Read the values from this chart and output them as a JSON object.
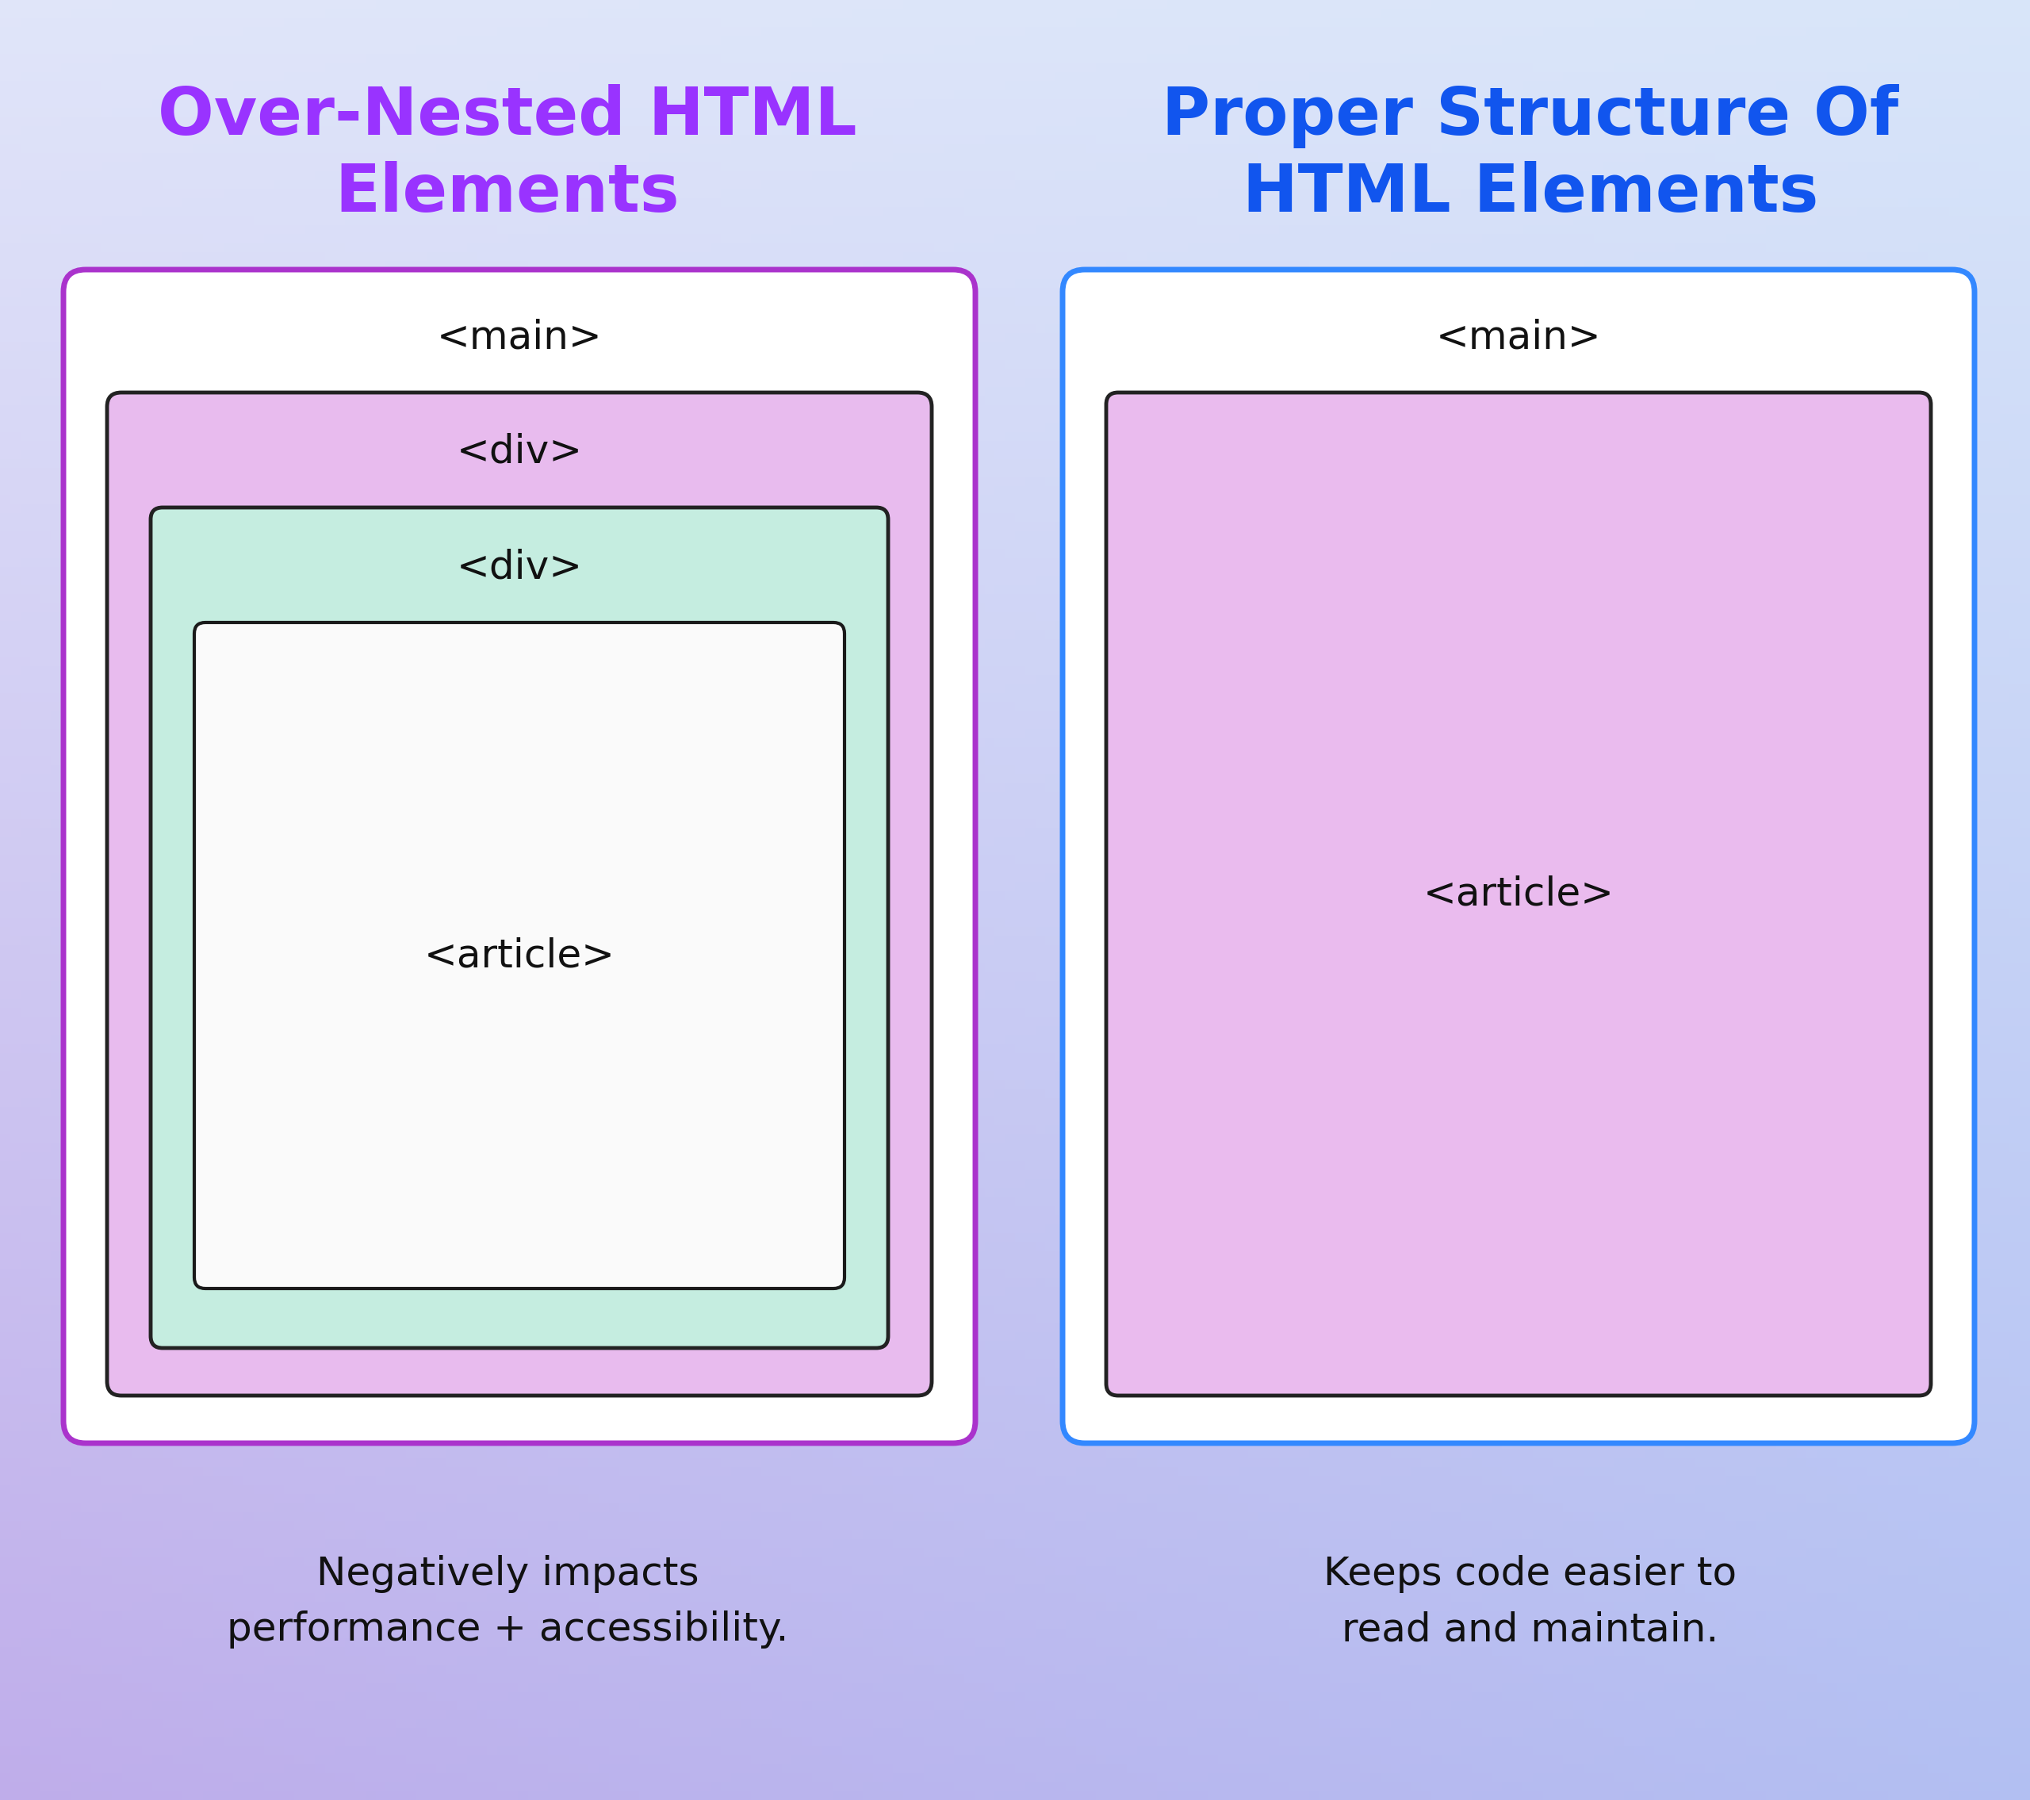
{
  "title_left": "Over-Nested HTML\nElements",
  "title_right": "Proper Structure Of\nHTML Elements",
  "title_left_color": "#9933FF",
  "title_right_color": "#1155EE",
  "caption_left": "Negatively impacts\nperformance + accessibility.",
  "caption_right": "Keeps code easier to\nread and maintain.",
  "caption_color": "#111111",
  "outer_box_border_left": "#AA33CC",
  "outer_box_border_right": "#3388FF",
  "outer_box_bg": "#FFFFFF",
  "div_box_bg": "#E8BBEE",
  "div_box_border": "#222222",
  "inner_div_bg": "#C5EDE0",
  "inner_div_border": "#222222",
  "article_bg": "#FAFAFA",
  "article_border": "#1A1A1A",
  "right_article_bg": "#EABBEE",
  "right_article_border": "#222222",
  "tag_font_size": 36,
  "title_font_size": 60,
  "caption_font_size": 36
}
